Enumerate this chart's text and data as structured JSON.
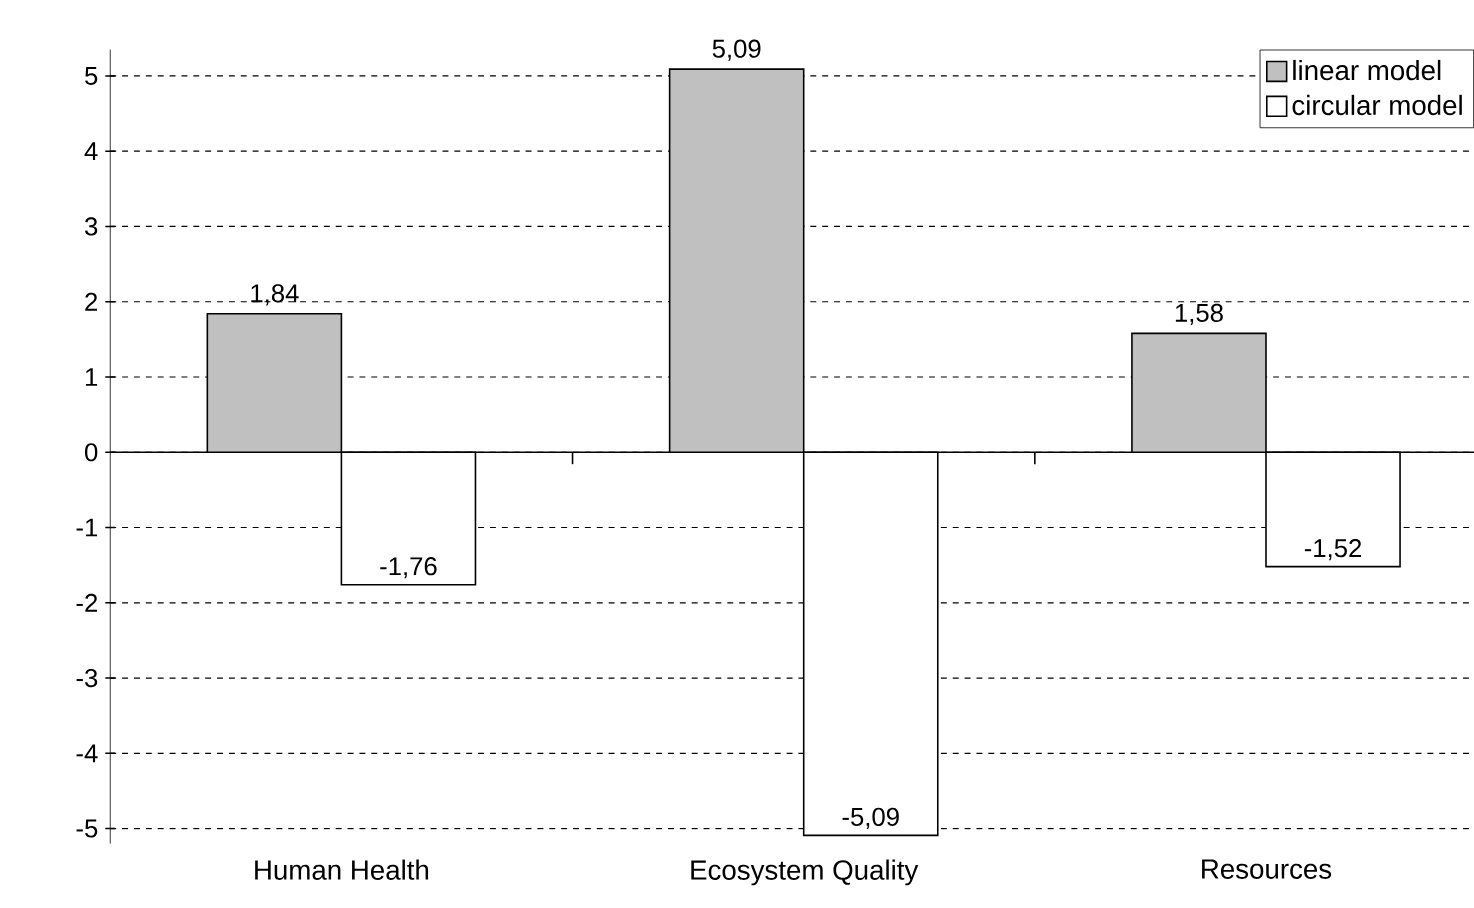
{
  "chart_data": {
    "type": "bar",
    "categories": [
      "Human Health",
      "Ecosystem Quality",
      "Resources"
    ],
    "series": [
      {
        "name": "linear model",
        "color": "#c0c0c0",
        "values": [
          1.84,
          5.09,
          1.58
        ],
        "value_labels": [
          "1,84",
          "5,09",
          "1,58"
        ]
      },
      {
        "name": "circular model",
        "color": "#ffffff",
        "values": [
          -1.76,
          -5.09,
          -1.52
        ],
        "value_labels": [
          "-1,76",
          "-5,09",
          "-1,52"
        ]
      }
    ],
    "ylim": [
      -5.2,
      5.35
    ],
    "yticks": [
      -5,
      -4,
      -3,
      -2,
      -1,
      0,
      1,
      2,
      3,
      4,
      5
    ],
    "grid": "y",
    "legend": "top right"
  }
}
